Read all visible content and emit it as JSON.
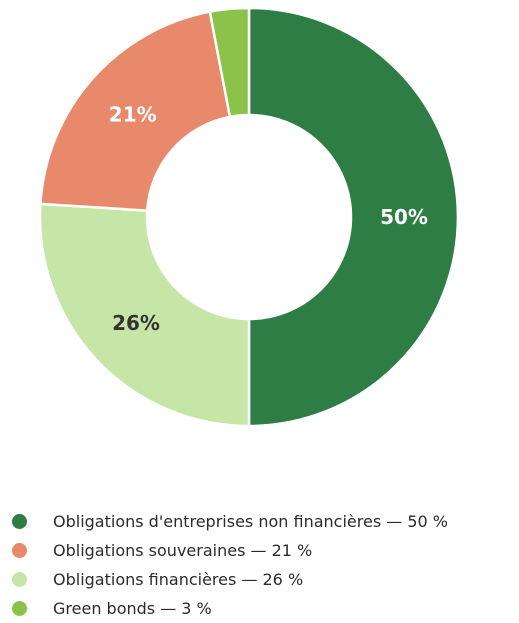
{
  "chart_data": {
    "type": "pie",
    "donut": true,
    "title": "",
    "slices": [
      {
        "label": "Obligations d'entreprises non financières",
        "value": 50,
        "display": "50%",
        "color": "#2e7d44",
        "label_color": "#ffffff"
      },
      {
        "label": "Obligations financières",
        "value": 26,
        "display": "26%",
        "color": "#c5e6a6",
        "label_color": "#333333"
      },
      {
        "label": "Obligations souveraines",
        "value": 21,
        "display": "21%",
        "color": "#e8896b",
        "label_color": "#ffffff"
      },
      {
        "label": "Green bonds",
        "value": 3,
        "display": "",
        "color": "#8bc34a",
        "label_color": "#ffffff"
      }
    ],
    "legend_placement": "bottom",
    "legend": [
      {
        "text": "Obligations d'entreprises non financières — 50 %",
        "color": "#2e7d44"
      },
      {
        "text": "Obligations souveraines — 21 %",
        "color": "#e8896b"
      },
      {
        "text": "Obligations financières — 26 %",
        "color": "#c5e6a6"
      },
      {
        "text": "Green bonds — 3 %",
        "color": "#8bc34a"
      }
    ]
  }
}
